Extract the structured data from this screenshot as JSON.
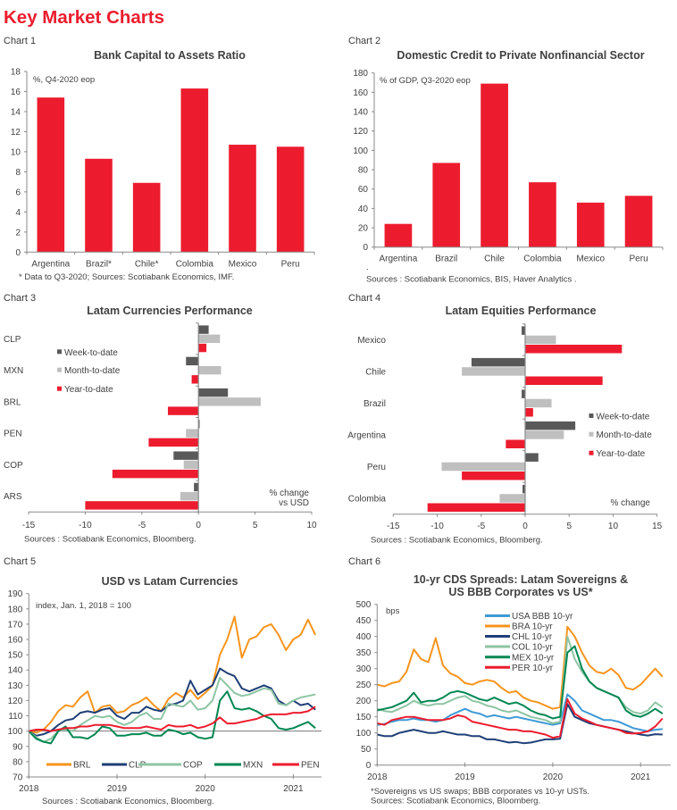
{
  "page": {
    "title": "Key Market Charts"
  },
  "chart_data": [
    {
      "label": "Chart 1",
      "type": "bar",
      "orientation": "vertical",
      "title": [
        "Bank Capital to Assets Ratio"
      ],
      "annotation": "%, Q4-2020 eop",
      "categories": [
        "Argentina",
        "Brazil*",
        "Chile*",
        "Colombia",
        "Mexico",
        "Peru"
      ],
      "values": [
        15.4,
        9.3,
        6.9,
        16.3,
        10.7,
        10.5
      ],
      "ylim": [
        0,
        18
      ],
      "yticks": [
        0,
        2,
        4,
        6,
        8,
        10,
        12,
        14,
        16,
        18
      ],
      "color": "#EC1C2E",
      "grid": false,
      "footnotes": [
        "* Data to Q3-2020; Sources: Scotiabank Economics, IMF."
      ]
    },
    {
      "label": "Chart 2",
      "type": "bar",
      "orientation": "vertical",
      "title": [
        "Domestic Credit to Private Nonfinancial Sector"
      ],
      "annotation": "% of GDP, Q3-2020 eop",
      "categories": [
        "Argentina",
        "Brazil",
        "Chile",
        "Colombia",
        "Mexico",
        "Peru"
      ],
      "values": [
        24,
        87,
        169,
        67,
        46,
        53
      ],
      "ylim": [
        0,
        180
      ],
      "yticks": [
        0,
        20,
        40,
        60,
        80,
        100,
        120,
        140,
        160,
        180
      ],
      "color": "#EC1C2E",
      "grid": false,
      "footnotes": [
        ".",
        "Sources : Scotiabank Economics, BIS, Haver Analytics ."
      ]
    },
    {
      "label": "Chart 3",
      "type": "bar",
      "orientation": "horizontal",
      "title": [
        "Latam Currencies Performance"
      ],
      "categories": [
        "CLP",
        "MXN",
        "BRL",
        "PEN",
        "COP",
        "ARS"
      ],
      "series": [
        {
          "name": "Week-to-date",
          "color": "#595959",
          "values": [
            0.9,
            -1.1,
            2.6,
            0.1,
            -2.2,
            -0.4
          ]
        },
        {
          "name": "Month-to-date",
          "color": "#BFBFBF",
          "values": [
            1.9,
            2.0,
            5.5,
            -1.1,
            -1.3,
            -1.6
          ]
        },
        {
          "name": "Year-to-date",
          "color": "#EC1C2E",
          "values": [
            0.7,
            -0.6,
            -2.7,
            -4.4,
            -7.6,
            -10.0
          ]
        }
      ],
      "xlim": [
        -15,
        10
      ],
      "xticks": [
        -15,
        -10,
        -5,
        0,
        5,
        10
      ],
      "xlabel": [
        "% change",
        "vs USD"
      ],
      "legend": "left",
      "grid": false,
      "footnotes": [
        "Sources : Scotiabank Economics, Bloomberg."
      ]
    },
    {
      "label": "Chart 4",
      "type": "bar",
      "orientation": "horizontal",
      "title": [
        "Latam Equities Performance"
      ],
      "categories": [
        "Mexico",
        "Chile",
        "Brazil",
        "Argentina",
        "Peru",
        "Colombia"
      ],
      "series": [
        {
          "name": "Week-to-date",
          "color": "#595959",
          "values": [
            -0.4,
            -6.1,
            -0.4,
            5.7,
            1.5,
            -0.3
          ]
        },
        {
          "name": "Month-to-date",
          "color": "#BFBFBF",
          "values": [
            3.5,
            -7.2,
            3.0,
            4.4,
            -9.5,
            -2.9
          ]
        },
        {
          "name": "Year-to-date",
          "color": "#EC1C2E",
          "values": [
            11.0,
            8.8,
            0.9,
            -2.2,
            -7.2,
            -11.1
          ]
        }
      ],
      "xlim": [
        -15,
        15
      ],
      "xticks": [
        -15,
        -10,
        -5,
        0,
        5,
        10,
        15
      ],
      "xlabel": [
        "% change"
      ],
      "legend": "right",
      "grid": false,
      "footnotes": [
        "Sources : Scotiabank Economics, Bloomberg."
      ]
    },
    {
      "label": "Chart 5",
      "type": "line",
      "title": [
        "USD vs Latam Currencies"
      ],
      "annotation": "index, Jan. 1, 2018 = 100",
      "reference": 100,
      "ylim": [
        70,
        190
      ],
      "yticks": [
        70,
        80,
        90,
        100,
        110,
        120,
        130,
        140,
        150,
        160,
        170,
        180,
        190
      ],
      "xticks": [
        2018,
        2019,
        2020,
        2021
      ],
      "legend": "bottom",
      "grid": false,
      "dates": [
        "2018-01",
        "2018-02",
        "2018-03",
        "2018-04",
        "2018-05",
        "2018-06",
        "2018-07",
        "2018-08",
        "2018-09",
        "2018-10",
        "2018-11",
        "2018-12",
        "2019-01",
        "2019-02",
        "2019-03",
        "2019-04",
        "2019-05",
        "2019-06",
        "2019-07",
        "2019-08",
        "2019-09",
        "2019-10",
        "2019-11",
        "2019-12",
        "2020-01",
        "2020-02",
        "2020-03",
        "2020-04",
        "2020-05",
        "2020-06",
        "2020-07",
        "2020-08",
        "2020-09",
        "2020-10",
        "2020-11",
        "2020-12",
        "2021-01",
        "2021-02",
        "2021-03",
        "2021-04"
      ],
      "series": [
        {
          "name": "BRL",
          "color": "#F7941D",
          "values": [
            100,
            99,
            101,
            106,
            113,
            117,
            116,
            122,
            126,
            112,
            116,
            117,
            112,
            113,
            117,
            119,
            122,
            117,
            113,
            121,
            125,
            122,
            127,
            121,
            125,
            130,
            150,
            160,
            175,
            148,
            160,
            162,
            168,
            170,
            163,
            153,
            160,
            163,
            173,
            163
          ]
        },
        {
          "name": "CLP",
          "color": "#1F3F77",
          "values": [
            100,
            97,
            98,
            100,
            104,
            107,
            108,
            112,
            113,
            112,
            114,
            115,
            110,
            108,
            112,
            112,
            116,
            114,
            113,
            117,
            118,
            120,
            133,
            124,
            127,
            130,
            141,
            138,
            136,
            128,
            126,
            128,
            130,
            128,
            120,
            117,
            120,
            117,
            118,
            114
          ]
        },
        {
          "name": "COP",
          "color": "#8DC5A3",
          "values": [
            100,
            96,
            93,
            95,
            100,
            101,
            100,
            104,
            107,
            110,
            109,
            110,
            106,
            104,
            106,
            110,
            112,
            108,
            108,
            118,
            117,
            116,
            120,
            114,
            115,
            120,
            135,
            130,
            125,
            123,
            124,
            126,
            128,
            127,
            118,
            117,
            120,
            122,
            123,
            124
          ]
        },
        {
          "name": "MXN",
          "color": "#008752",
          "values": [
            100,
            95,
            93,
            92,
            100,
            103,
            96,
            96,
            95,
            98,
            103,
            102,
            97,
            97,
            98,
            98,
            99,
            97,
            97,
            101,
            100,
            98,
            99,
            96,
            95,
            96,
            120,
            126,
            115,
            114,
            115,
            113,
            110,
            108,
            102,
            101,
            102,
            104,
            106,
            102
          ]
        },
        {
          "name": "PEN",
          "color": "#ED1C2E",
          "values": [
            100,
            101,
            101,
            100,
            101,
            102,
            102,
            103,
            103,
            104,
            104,
            104,
            103,
            102,
            102,
            102,
            103,
            102,
            101,
            104,
            103,
            103,
            104,
            102,
            103,
            105,
            109,
            105,
            105,
            106,
            107,
            108,
            110,
            111,
            111,
            111,
            112,
            112,
            113,
            116
          ]
        }
      ],
      "footnotes": [
        "Sources : Scotiabank Economics, Bloomberg."
      ]
    },
    {
      "label": "Chart 6",
      "type": "line",
      "title": [
        "10-yr CDS Spreads: Latam Sovereigns &",
        "US BBB Corporates vs US*"
      ],
      "annotation": "bps",
      "ylim": [
        0,
        500
      ],
      "yticks": [
        0,
        50,
        100,
        150,
        200,
        250,
        300,
        350,
        400,
        450,
        500
      ],
      "xticks": [
        2018,
        2019,
        2020,
        2021
      ],
      "legend": "top-center",
      "grid": false,
      "dates": [
        "2018-01",
        "2018-02",
        "2018-03",
        "2018-04",
        "2018-05",
        "2018-06",
        "2018-07",
        "2018-08",
        "2018-09",
        "2018-10",
        "2018-11",
        "2018-12",
        "2019-01",
        "2019-02",
        "2019-03",
        "2019-04",
        "2019-05",
        "2019-06",
        "2019-07",
        "2019-08",
        "2019-09",
        "2019-10",
        "2019-11",
        "2019-12",
        "2020-01",
        "2020-02",
        "2020-03",
        "2020-04",
        "2020-05",
        "2020-06",
        "2020-07",
        "2020-08",
        "2020-09",
        "2020-10",
        "2020-11",
        "2020-12",
        "2021-01",
        "2021-02",
        "2021-03",
        "2021-04"
      ],
      "series": [
        {
          "name": "USA BBB 10-yr",
          "color": "#3E9AD6",
          "values": [
            125,
            128,
            135,
            140,
            140,
            145,
            140,
            140,
            135,
            140,
            155,
            165,
            175,
            165,
            160,
            150,
            155,
            150,
            145,
            150,
            145,
            140,
            135,
            130,
            125,
            130,
            220,
            200,
            170,
            160,
            150,
            140,
            140,
            135,
            125,
            115,
            110,
            105,
            110,
            112
          ]
        },
        {
          "name": "BRA 10-yr",
          "color": "#F7941D",
          "values": [
            250,
            245,
            255,
            260,
            290,
            360,
            330,
            320,
            395,
            310,
            285,
            275,
            255,
            250,
            260,
            265,
            260,
            240,
            225,
            230,
            210,
            200,
            195,
            185,
            175,
            180,
            430,
            400,
            350,
            310,
            290,
            285,
            300,
            280,
            240,
            235,
            250,
            275,
            300,
            275
          ]
        },
        {
          "name": "CHL 10-yr",
          "color": "#1F3F77",
          "values": [
            95,
            90,
            90,
            100,
            105,
            110,
            105,
            100,
            100,
            105,
            100,
            95,
            95,
            90,
            90,
            80,
            80,
            75,
            70,
            72,
            68,
            70,
            75,
            80,
            80,
            82,
            190,
            150,
            140,
            130,
            125,
            120,
            115,
            110,
            105,
            100,
            95,
            92,
            96,
            95
          ]
        },
        {
          "name": "COL 10-yr",
          "color": "#8DC5A3",
          "values": [
            175,
            168,
            165,
            175,
            185,
            200,
            190,
            185,
            190,
            190,
            200,
            210,
            215,
            200,
            195,
            185,
            180,
            170,
            165,
            170,
            160,
            150,
            145,
            140,
            130,
            135,
            400,
            330,
            290,
            260,
            240,
            230,
            220,
            210,
            180,
            165,
            160,
            170,
            195,
            180
          ]
        },
        {
          "name": "MEX 10-yr",
          "color": "#008752",
          "values": [
            170,
            175,
            180,
            190,
            200,
            225,
            195,
            200,
            200,
            210,
            225,
            230,
            225,
            215,
            205,
            200,
            210,
            200,
            190,
            195,
            185,
            170,
            160,
            155,
            145,
            150,
            350,
            370,
            300,
            260,
            240,
            230,
            220,
            210,
            170,
            155,
            150,
            160,
            175,
            160
          ]
        },
        {
          "name": "PER 10-yr",
          "color": "#ED1C2E",
          "values": [
            130,
            125,
            140,
            145,
            150,
            150,
            145,
            140,
            140,
            140,
            145,
            155,
            150,
            135,
            130,
            125,
            120,
            115,
            110,
            110,
            105,
            105,
            100,
            95,
            85,
            90,
            205,
            160,
            145,
            135,
            125,
            120,
            115,
            110,
            100,
            98,
            100,
            105,
            120,
            145
          ]
        }
      ],
      "footnotes": [
        "*Sovereigns vs US swaps; BBB corporates vs  10-yr USTs.",
        "Sources: Scotiabank Economics, Bloomberg."
      ]
    }
  ]
}
